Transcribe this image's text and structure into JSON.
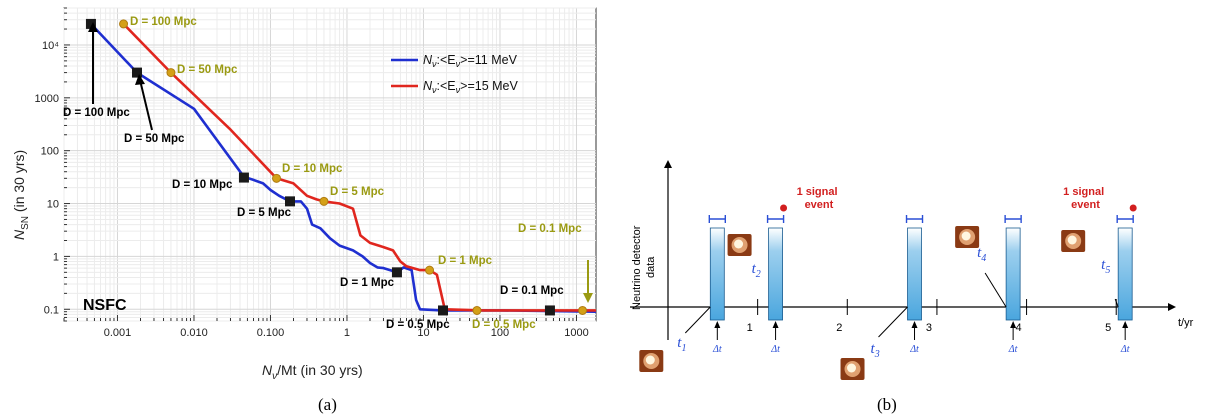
{
  "captions": {
    "a": "(a)",
    "b": "(b)"
  },
  "colors": {
    "blue": "#1f2fd0",
    "red": "#e0261e",
    "olive": "#9a9a12",
    "band": "#5fb2e4",
    "dt": "#2a4fd6"
  },
  "chart_data": [
    {
      "type": "line",
      "panel": "a",
      "xlabel_main": "N",
      "xlabel_sub": "ν",
      "xlabel_rest": "/Mt (in 30  yrs)",
      "ylabel_main": "N",
      "ylabel_sub": "SN",
      "ylabel_rest": " (in 30 yrs)",
      "xscale": "log",
      "yscale": "log",
      "xlim": [
        0.0002,
        1800
      ],
      "ylim": [
        0.06,
        50000
      ],
      "grid": true,
      "legend_position": "top-right",
      "watermark": "NSFC",
      "xticks": [
        {
          "v": 0.001,
          "label": "0.001"
        },
        {
          "v": 0.01,
          "label": "0.010"
        },
        {
          "v": 0.1,
          "label": "0.100"
        },
        {
          "v": 1,
          "label": "1"
        },
        {
          "v": 10,
          "label": "10"
        },
        {
          "v": 100,
          "label": "100"
        },
        {
          "v": 1000,
          "label": "1000"
        }
      ],
      "yticks": [
        {
          "v": 0.1,
          "label": "0.1"
        },
        {
          "v": 1,
          "label": "1"
        },
        {
          "v": 10,
          "label": "10"
        },
        {
          "v": 100,
          "label": "100"
        },
        {
          "v": 1000,
          "label": "1000"
        },
        {
          "v": 10000,
          "label": "10⁴"
        }
      ],
      "series": [
        {
          "name": "Nν:<Eν>=11 MeV",
          "legend_main": "N",
          "legend_rest": ":<E",
          "legend_end": ">=11 MeV",
          "color": "#1f2fd0",
          "marker": "square",
          "points": [
            [
              0.00045,
              25000
            ],
            [
              0.0018,
              3000
            ],
            [
              0.01,
              620
            ],
            [
              0.045,
              32
            ],
            [
              0.06,
              28
            ],
            [
              0.08,
              24
            ],
            [
              0.1,
              18
            ],
            [
              0.13,
              14
            ],
            [
              0.18,
              11
            ],
            [
              0.25,
              11
            ],
            [
              0.3,
              8
            ],
            [
              0.35,
              4
            ],
            [
              0.45,
              3.4
            ],
            [
              0.6,
              2.2
            ],
            [
              0.8,
              1.6
            ],
            [
              1.2,
              1.3
            ],
            [
              1.6,
              1.0
            ],
            [
              2.0,
              0.75
            ],
            [
              2.5,
              0.62
            ],
            [
              3,
              0.6
            ],
            [
              4.5,
              0.5
            ],
            [
              5.5,
              0.62
            ],
            [
              7,
              0.55
            ],
            [
              8,
              0.15
            ],
            [
              9,
              0.1
            ],
            [
              18,
              0.095
            ],
            [
              100,
              0.095
            ],
            [
              1800,
              0.09
            ]
          ],
          "markers": [
            {
              "x": 0.00045,
              "y": 25000,
              "label": "D = 100 Mpc"
            },
            {
              "x": 0.0018,
              "y": 3000,
              "label": "D = 50 Mpc"
            },
            {
              "x": 0.045,
              "y": 31,
              "label": "D = 10 Mpc"
            },
            {
              "x": 0.18,
              "y": 11,
              "label": "D = 5 Mpc"
            },
            {
              "x": 4.5,
              "y": 0.5,
              "label": "D = 1 Mpc"
            },
            {
              "x": 18,
              "y": 0.095,
              "label": "D = 0.5 Mpc"
            },
            {
              "x": 450,
              "y": 0.095,
              "label": "D = 0.1 Mpc"
            }
          ]
        },
        {
          "name": "Nν:<Eν>=15 MeV",
          "legend_main": "N",
          "legend_rest": ":<E",
          "legend_end": ">=15 MeV",
          "color": "#e0261e",
          "marker": "circle",
          "points": [
            [
              0.0012,
              25000
            ],
            [
              0.005,
              3000
            ],
            [
              0.03,
              250
            ],
            [
              0.12,
              30
            ],
            [
              0.2,
              24
            ],
            [
              0.3,
              14
            ],
            [
              0.4,
              12
            ],
            [
              0.5,
              11
            ],
            [
              0.8,
              10
            ],
            [
              1.2,
              8
            ],
            [
              1.5,
              2.5
            ],
            [
              2,
              1.8
            ],
            [
              3,
              1.5
            ],
            [
              4,
              1.3
            ],
            [
              5,
              0.8
            ],
            [
              6,
              0.65
            ],
            [
              9,
              0.55
            ],
            [
              12,
              0.55
            ],
            [
              15,
              0.45
            ],
            [
              19,
              0.1
            ],
            [
              60,
              0.095
            ],
            [
              1800,
              0.095
            ]
          ],
          "markers": [
            {
              "x": 0.0012,
              "y": 25000,
              "label": "D = 100 Mpc"
            },
            {
              "x": 0.005,
              "y": 3000,
              "label": "D = 50 Mpc"
            },
            {
              "x": 0.12,
              "y": 30,
              "label": "D = 10 Mpc"
            },
            {
              "x": 0.5,
              "y": 11,
              "label": "D = 5 Mpc"
            },
            {
              "x": 12,
              "y": 0.55,
              "label": "D = 1 Mpc"
            },
            {
              "x": 50,
              "y": 0.095,
              "label": "D = 0.5 Mpc"
            },
            {
              "x": 1200,
              "y": 0.095,
              "label": "D = 0.1 Mpc"
            }
          ]
        }
      ]
    },
    {
      "type": "timeline",
      "panel": "b",
      "xlabel": "t/yr",
      "ylabel_line1": "Neutrino detector",
      "ylabel_line2": "data",
      "xlim": [
        0,
        5.6
      ],
      "ticks": [
        {
          "v": 1,
          "label": "1"
        },
        {
          "v": 2,
          "label": "2"
        },
        {
          "v": 3,
          "label": "3"
        },
        {
          "v": 4,
          "label": "4"
        },
        {
          "v": 5,
          "label": "5"
        }
      ],
      "dt_label": "Δt",
      "windows": [
        {
          "t": 0.55,
          "label_main": "t",
          "label_sub": "1",
          "signal": false
        },
        {
          "t": 1.2,
          "label_main": "t",
          "label_sub": "2",
          "signal": true
        },
        {
          "t": 2.75,
          "label_main": "t",
          "label_sub": "3",
          "signal": false
        },
        {
          "t": 3.85,
          "label_main": "t",
          "label_sub": "4",
          "signal": false
        },
        {
          "t": 5.1,
          "label_main": "t",
          "label_sub": "5",
          "signal": true
        }
      ],
      "signal_label_line1": "1 signal",
      "signal_label_line2": "event"
    }
  ]
}
